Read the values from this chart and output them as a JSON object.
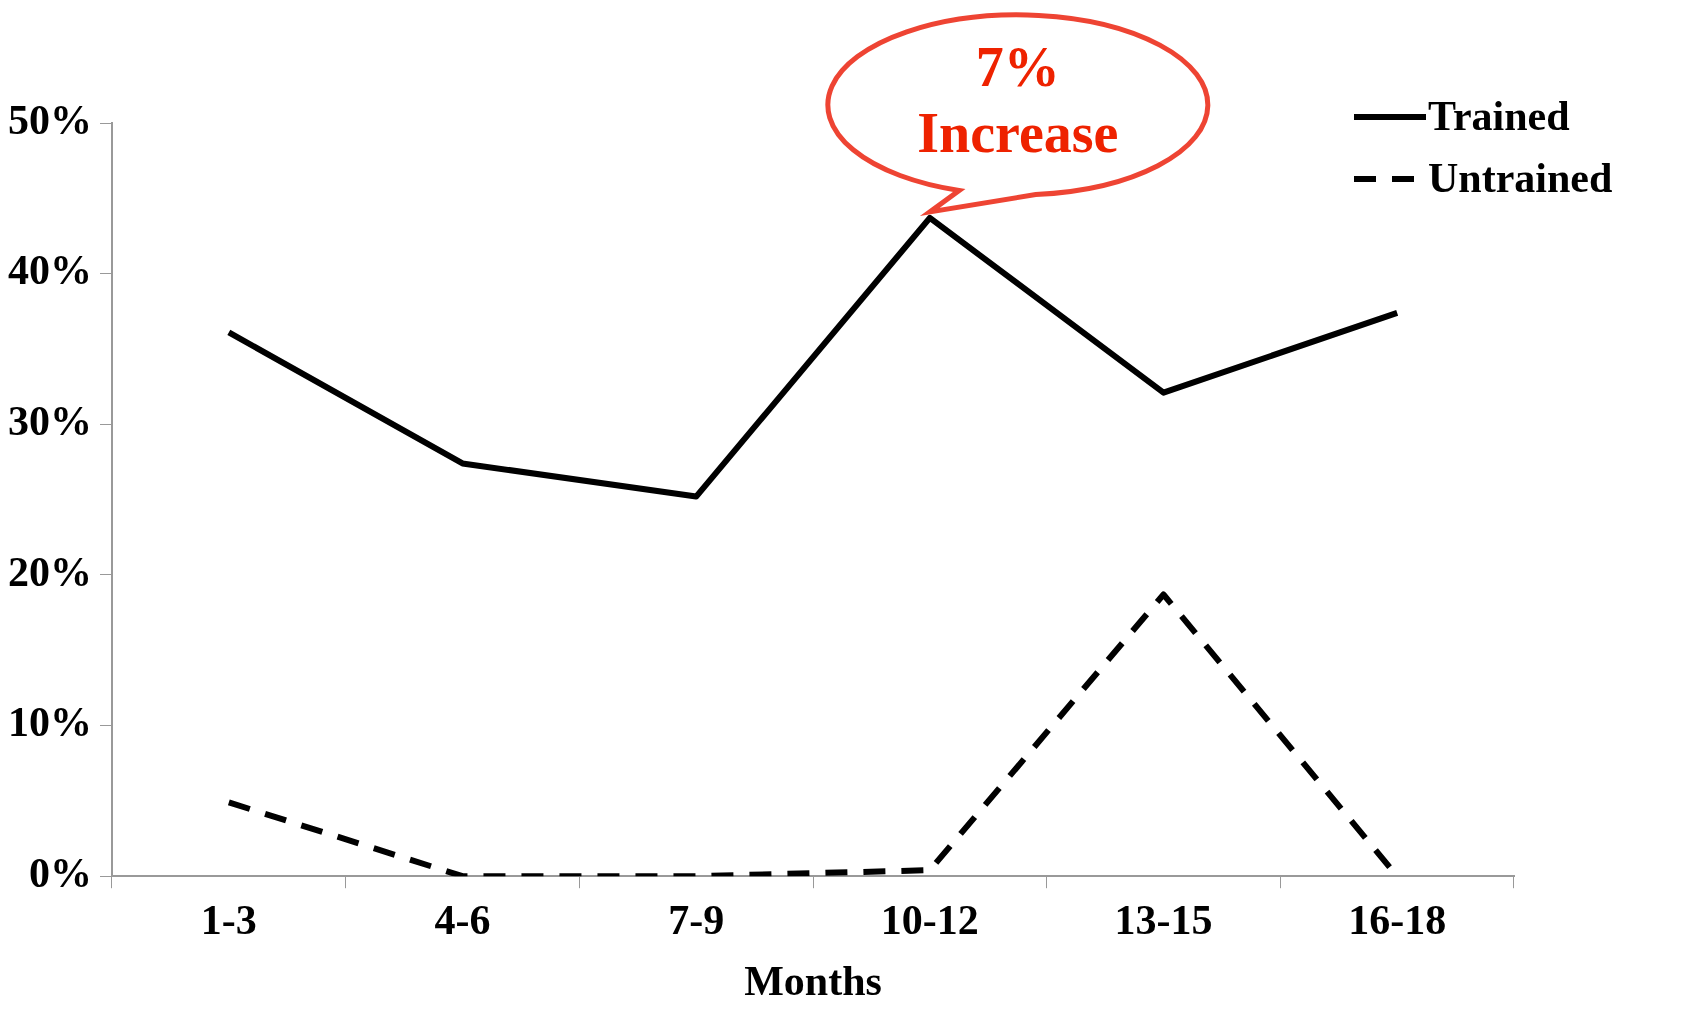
{
  "chart_data": {
    "type": "line",
    "xlabel": "Months",
    "categories": [
      "1-3",
      "4-6",
      "7-9",
      "10-12",
      "13-15",
      "16-18"
    ],
    "series": [
      {
        "name": "Trained",
        "color": "#000000",
        "line_style": "solid",
        "values": [
          36.1,
          27.4,
          25.2,
          43.7,
          32.1,
          37.4
        ]
      },
      {
        "name": "Untrained",
        "color": "#000000",
        "line_style": "dashed",
        "values": [
          4.9,
          0,
          0,
          0.4,
          18.7,
          0
        ]
      }
    ],
    "ylim": [
      0,
      50
    ],
    "yticks": [
      {
        "value": 0,
        "label": "0%"
      },
      {
        "value": 10,
        "label": "10%"
      },
      {
        "value": 20,
        "label": "20%"
      },
      {
        "value": 30,
        "label": "30%"
      },
      {
        "value": 40,
        "label": "40%"
      },
      {
        "value": 50,
        "label": "50%"
      }
    ],
    "grid": false,
    "legend": "top right",
    "marker": "none",
    "annotations": [
      {
        "text": "7%\nIncrease",
        "x": "10-12",
        "y": 43.7
      }
    ]
  }
}
